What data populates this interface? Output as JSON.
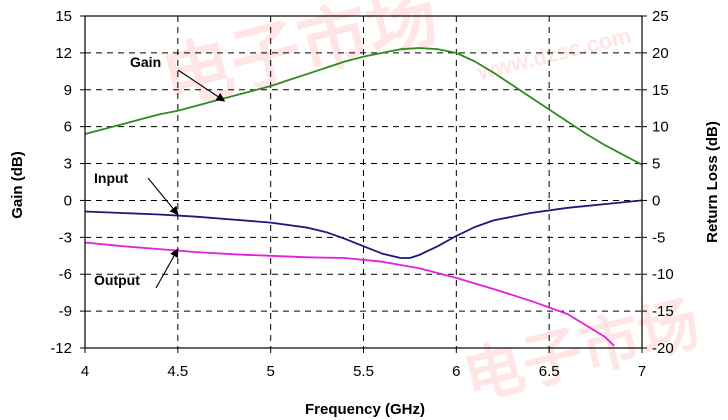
{
  "chart_data": {
    "type": "line",
    "xlabel": "Frequency (GHz)",
    "ylabel_left": "Gain (dB)",
    "ylabel_right": "Return Loss (dB)",
    "xlim": [
      4,
      7
    ],
    "ylim_left": [
      -12,
      15
    ],
    "ylim_right": [
      -20,
      25
    ],
    "x_ticks": [
      "4",
      "4.5",
      "5",
      "5.5",
      "6",
      "6.5",
      "7"
    ],
    "y_left_ticks": [
      "15",
      "12",
      "9",
      "6",
      "3",
      "0",
      "-3",
      "-6",
      "-9",
      "-12"
    ],
    "y_right_ticks": [
      "25",
      "20",
      "15",
      "10",
      "5",
      "0",
      "-5",
      "-10",
      "-15",
      "-20"
    ],
    "grid": true,
    "series": [
      {
        "name": "Gain",
        "axis": "left",
        "color": "#2e8b22",
        "x": [
          4.0,
          4.1,
          4.2,
          4.3,
          4.4,
          4.5,
          4.6,
          4.7,
          4.8,
          4.9,
          5.0,
          5.1,
          5.2,
          5.3,
          5.4,
          5.5,
          5.6,
          5.7,
          5.8,
          5.9,
          6.0,
          6.1,
          6.2,
          6.3,
          6.4,
          6.5,
          6.6,
          6.7,
          6.8,
          6.9,
          7.0
        ],
        "values": [
          5.4,
          5.8,
          6.2,
          6.6,
          7.0,
          7.3,
          7.7,
          8.1,
          8.5,
          8.9,
          9.3,
          9.8,
          10.3,
          10.8,
          11.3,
          11.7,
          12.0,
          12.3,
          12.4,
          12.3,
          12.0,
          11.3,
          10.4,
          9.4,
          8.4,
          7.4,
          6.4,
          5.4,
          4.5,
          3.7,
          2.9
        ]
      },
      {
        "name": "Input",
        "axis": "right",
        "color": "#1a1a7a",
        "x": [
          4.0,
          4.2,
          4.4,
          4.6,
          4.8,
          5.0,
          5.2,
          5.3,
          5.4,
          5.5,
          5.6,
          5.7,
          5.75,
          5.8,
          5.9,
          6.0,
          6.1,
          6.2,
          6.4,
          6.6,
          6.8,
          7.0
        ],
        "values": [
          -1.5,
          -1.7,
          -1.9,
          -2.2,
          -2.6,
          -3.0,
          -3.7,
          -4.3,
          -5.2,
          -6.2,
          -7.2,
          -7.8,
          -7.8,
          -7.4,
          -6.2,
          -4.8,
          -3.6,
          -2.7,
          -1.7,
          -1.0,
          -0.5,
          0.0
        ]
      },
      {
        "name": "Output",
        "axis": "right",
        "color": "#e020e0",
        "x": [
          4.0,
          4.2,
          4.4,
          4.6,
          4.8,
          5.0,
          5.2,
          5.4,
          5.6,
          5.8,
          6.0,
          6.2,
          6.4,
          6.6,
          6.8,
          6.85
        ],
        "values": [
          -5.7,
          -6.2,
          -6.6,
          -7.0,
          -7.3,
          -7.5,
          -7.7,
          -7.8,
          -8.3,
          -9.2,
          -10.5,
          -12.0,
          -13.6,
          -15.4,
          -18.5,
          -19.7
        ]
      }
    ],
    "annotations": [
      {
        "text": "Gain",
        "target": {
          "x": 4.75,
          "y": 8.1,
          "axis": "left"
        }
      },
      {
        "text": "Input",
        "target": {
          "x": 4.5,
          "y": -1.9,
          "axis": "right"
        }
      },
      {
        "text": "Output",
        "target": {
          "x": 4.5,
          "y": -6.6,
          "axis": "right"
        }
      }
    ]
  }
}
